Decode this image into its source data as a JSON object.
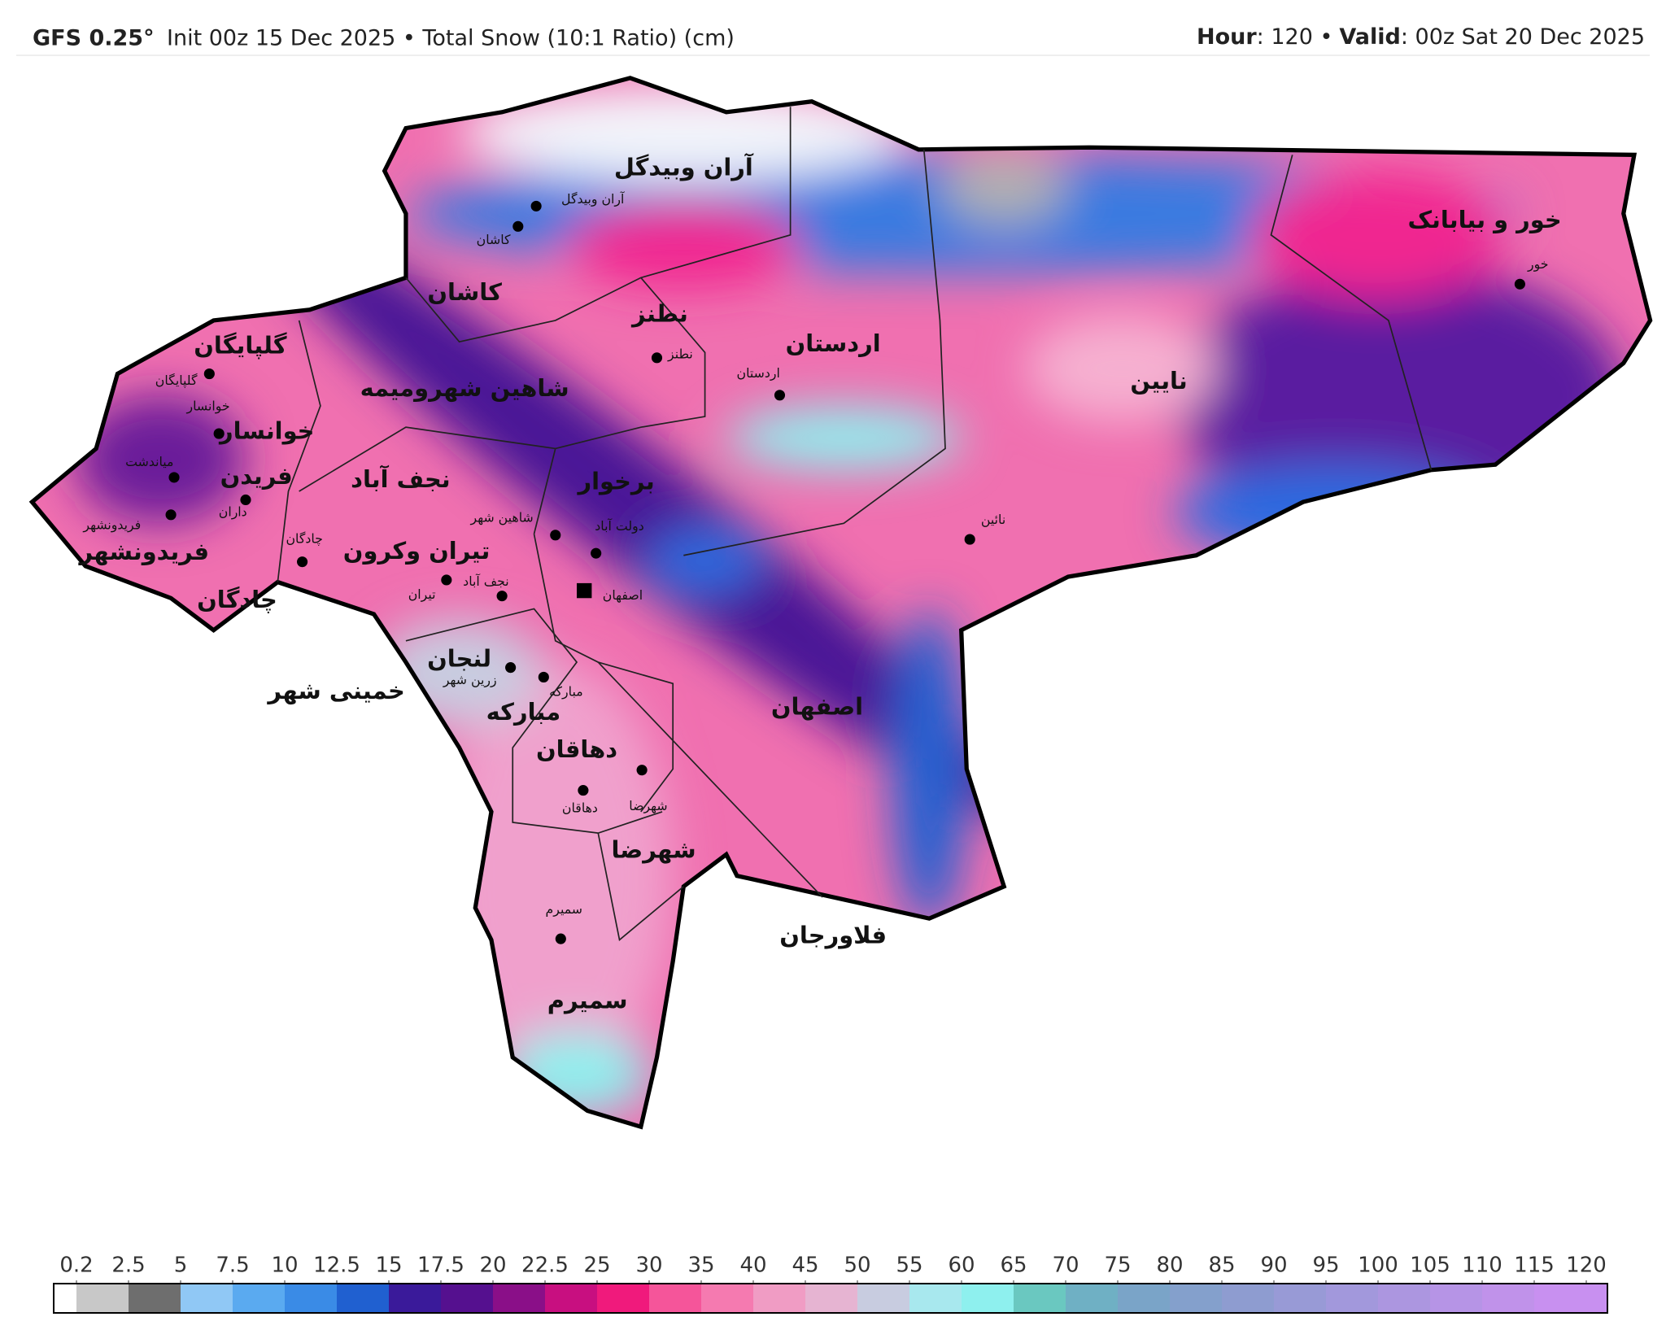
{
  "header": {
    "model": "GFS 0.25°",
    "init": "Init 00z 15 Dec 2025 • Total Snow (10:1 Ratio) (cm)",
    "hour_key": "Hour",
    "hour_value": ": 120 •",
    "valid_key": "Valid",
    "valid_value": ": 00z Sat 20 Dec 2025"
  },
  "map": {
    "county_labels": [
      "آران وبیدگل",
      "کاشان",
      "نطنز",
      "اردستان",
      "نایین",
      "خور و بیابانک",
      "گلپایگان",
      "خوانسار",
      "فریدن",
      "شاهین شهرومیمه",
      "نجف آباد",
      "برخوار",
      "فریدونشهر",
      "تیران وکرون",
      "لنجان",
      "خمینی شهر",
      "مبارکه",
      "دهاقان",
      "اصفهان",
      "شهرضا",
      "فلاورجان",
      "سمیرم",
      "چادگان"
    ],
    "city_labels": [
      "آران وبیدگل",
      "کاشان",
      "نطنز",
      "اردستان",
      "نائین",
      "خور",
      "گلپایگان",
      "خوانسار",
      "میاندشت",
      "داران",
      "فریدونشهر",
      "چادگان",
      "شاهین شهر",
      "دولت آباد",
      "نجف آباد",
      "تیران",
      "اصفهان",
      "زرین شهر",
      "مبارکه",
      "دهاقان",
      "شهرضا",
      "سمیرم"
    ]
  },
  "legend": {
    "ticks": [
      0.2,
      2.5,
      5,
      7.5,
      10,
      12.5,
      15,
      17.5,
      20,
      22.5,
      25,
      30,
      35,
      40,
      45,
      50,
      55,
      60,
      65,
      70,
      75,
      80,
      85,
      90,
      95,
      100,
      105,
      110,
      115,
      120
    ],
    "colors": [
      "#c8c8c8",
      "#6e6e6e",
      "#90c8f5",
      "#5aaaf0",
      "#3a8be6",
      "#2060d0",
      "#3a1a9a",
      "#55108f",
      "#8a0f88",
      "#c80f80",
      "#f01a7c",
      "#f5559a",
      "#f57ab0",
      "#f09cc4",
      "#e6b4d2",
      "#c8cce0",
      "#a8e8ee",
      "#8ef0ee",
      "#6ac8c0",
      "#6fb0c4",
      "#7aa4c8",
      "#84a0cc",
      "#8e9cd0",
      "#989ad6",
      "#a298dc",
      "#ac96e0",
      "#b694e6",
      "#c092ea",
      "#c890f0"
    ]
  }
}
